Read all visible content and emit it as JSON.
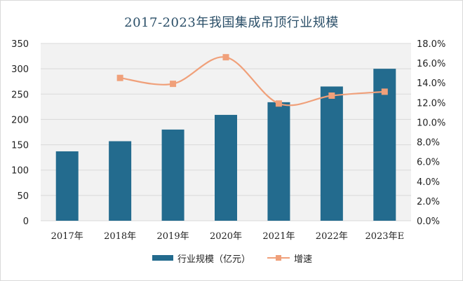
{
  "chart_data": {
    "type": "bar",
    "title": "2017-2023年我国集成吊顶行业规模",
    "categories": [
      "2017年",
      "2018年",
      "2019年",
      "2020年",
      "2021年",
      "2022年",
      "2023年E"
    ],
    "series": [
      {
        "name": "行业规模（亿元）",
        "type": "bar",
        "axis": "left",
        "values": [
          137,
          157,
          180,
          209,
          234,
          265,
          300
        ]
      },
      {
        "name": "增速",
        "type": "line",
        "axis": "right",
        "unit": "%",
        "values": [
          null,
          14.5,
          13.9,
          16.6,
          11.9,
          12.7,
          13.1
        ]
      }
    ],
    "ylim_left": [
      0,
      350
    ],
    "yticks_left": [
      "0",
      "50",
      "100",
      "150",
      "200",
      "250",
      "300",
      "350"
    ],
    "ylim_right": [
      0,
      18
    ],
    "yticks_right": [
      "0.0%",
      "2.0%",
      "4.0%",
      "6.0%",
      "8.0%",
      "10.0%",
      "12.0%",
      "14.0%",
      "16.0%",
      "18.0%"
    ],
    "grid": true,
    "legend_position": "bottom",
    "colors": {
      "bar": "#236b8e",
      "line": "#f0a07a",
      "plot_bg": "#f2f2f2",
      "grid": "#d9d9d9"
    }
  }
}
